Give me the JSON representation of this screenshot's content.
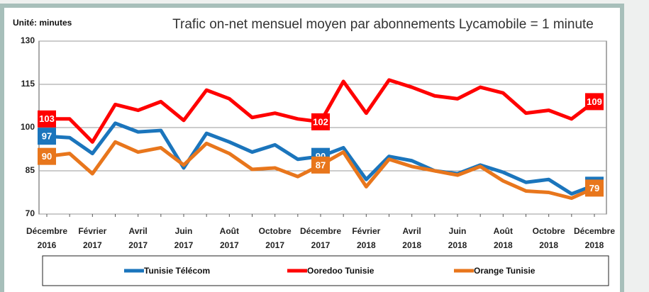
{
  "chart_data": {
    "type": "line",
    "title": "Trafic on-net mensuel moyen par abonnements Lycamobile = 1 minute",
    "y_label": "Unité: minutes",
    "categories": [
      "Décembre 2016",
      null,
      "Février 2017",
      null,
      "Avril 2017",
      null,
      "Juin 2017",
      null,
      "Août 2017",
      null,
      "Octobre 2017",
      null,
      "Décembre 2017",
      null,
      "Février 2018",
      null,
      "Avril 2018",
      null,
      "Juin 2018",
      null,
      "Août 2018",
      null,
      "Octobre 2018",
      null,
      "Décembre 2018"
    ],
    "ylim": [
      70,
      130
    ],
    "yticks": [
      70,
      85,
      100,
      115,
      130
    ],
    "grid": true,
    "legend": "bottom",
    "series": [
      {
        "name": "Tunisie Télécom",
        "color": "#1b75bc",
        "values": [
          97,
          96.5,
          91,
          101.5,
          98.5,
          99,
          86,
          98,
          95,
          91.5,
          94,
          89,
          90,
          93,
          82,
          90,
          88.5,
          85,
          84,
          87,
          84.5,
          81,
          82,
          77,
          80
        ],
        "value_labels": [
          "97",
          null,
          null,
          null,
          null,
          null,
          null,
          null,
          null,
          null,
          null,
          null,
          "90",
          null,
          null,
          null,
          null,
          null,
          null,
          null,
          null,
          null,
          null,
          null,
          "80"
        ]
      },
      {
        "name": "Ooredoo Tunisie",
        "color": "#ff0000",
        "values": [
          103,
          103,
          95,
          108,
          106,
          109,
          102.5,
          113,
          110,
          103.5,
          105,
          103,
          102,
          116,
          105,
          116.5,
          114,
          111,
          110,
          114,
          112,
          105,
          106,
          103,
          109
        ],
        "value_labels": [
          "103",
          null,
          null,
          null,
          null,
          null,
          null,
          null,
          null,
          null,
          null,
          null,
          "102",
          null,
          null,
          null,
          null,
          null,
          null,
          null,
          null,
          null,
          null,
          null,
          "109"
        ]
      },
      {
        "name": "Orange Tunisie",
        "color": "#e8761c",
        "values": [
          90,
          91,
          84,
          95,
          91.5,
          93,
          87,
          94.5,
          91,
          85.5,
          86,
          83,
          87,
          91.5,
          79.5,
          89,
          86.5,
          85,
          83.5,
          86.5,
          81.5,
          78,
          77.5,
          75.5,
          79
        ],
        "value_labels": [
          "90",
          null,
          null,
          null,
          null,
          null,
          null,
          null,
          null,
          null,
          null,
          null,
          "87",
          null,
          null,
          null,
          null,
          null,
          null,
          null,
          null,
          null,
          null,
          null,
          "79"
        ]
      }
    ]
  }
}
